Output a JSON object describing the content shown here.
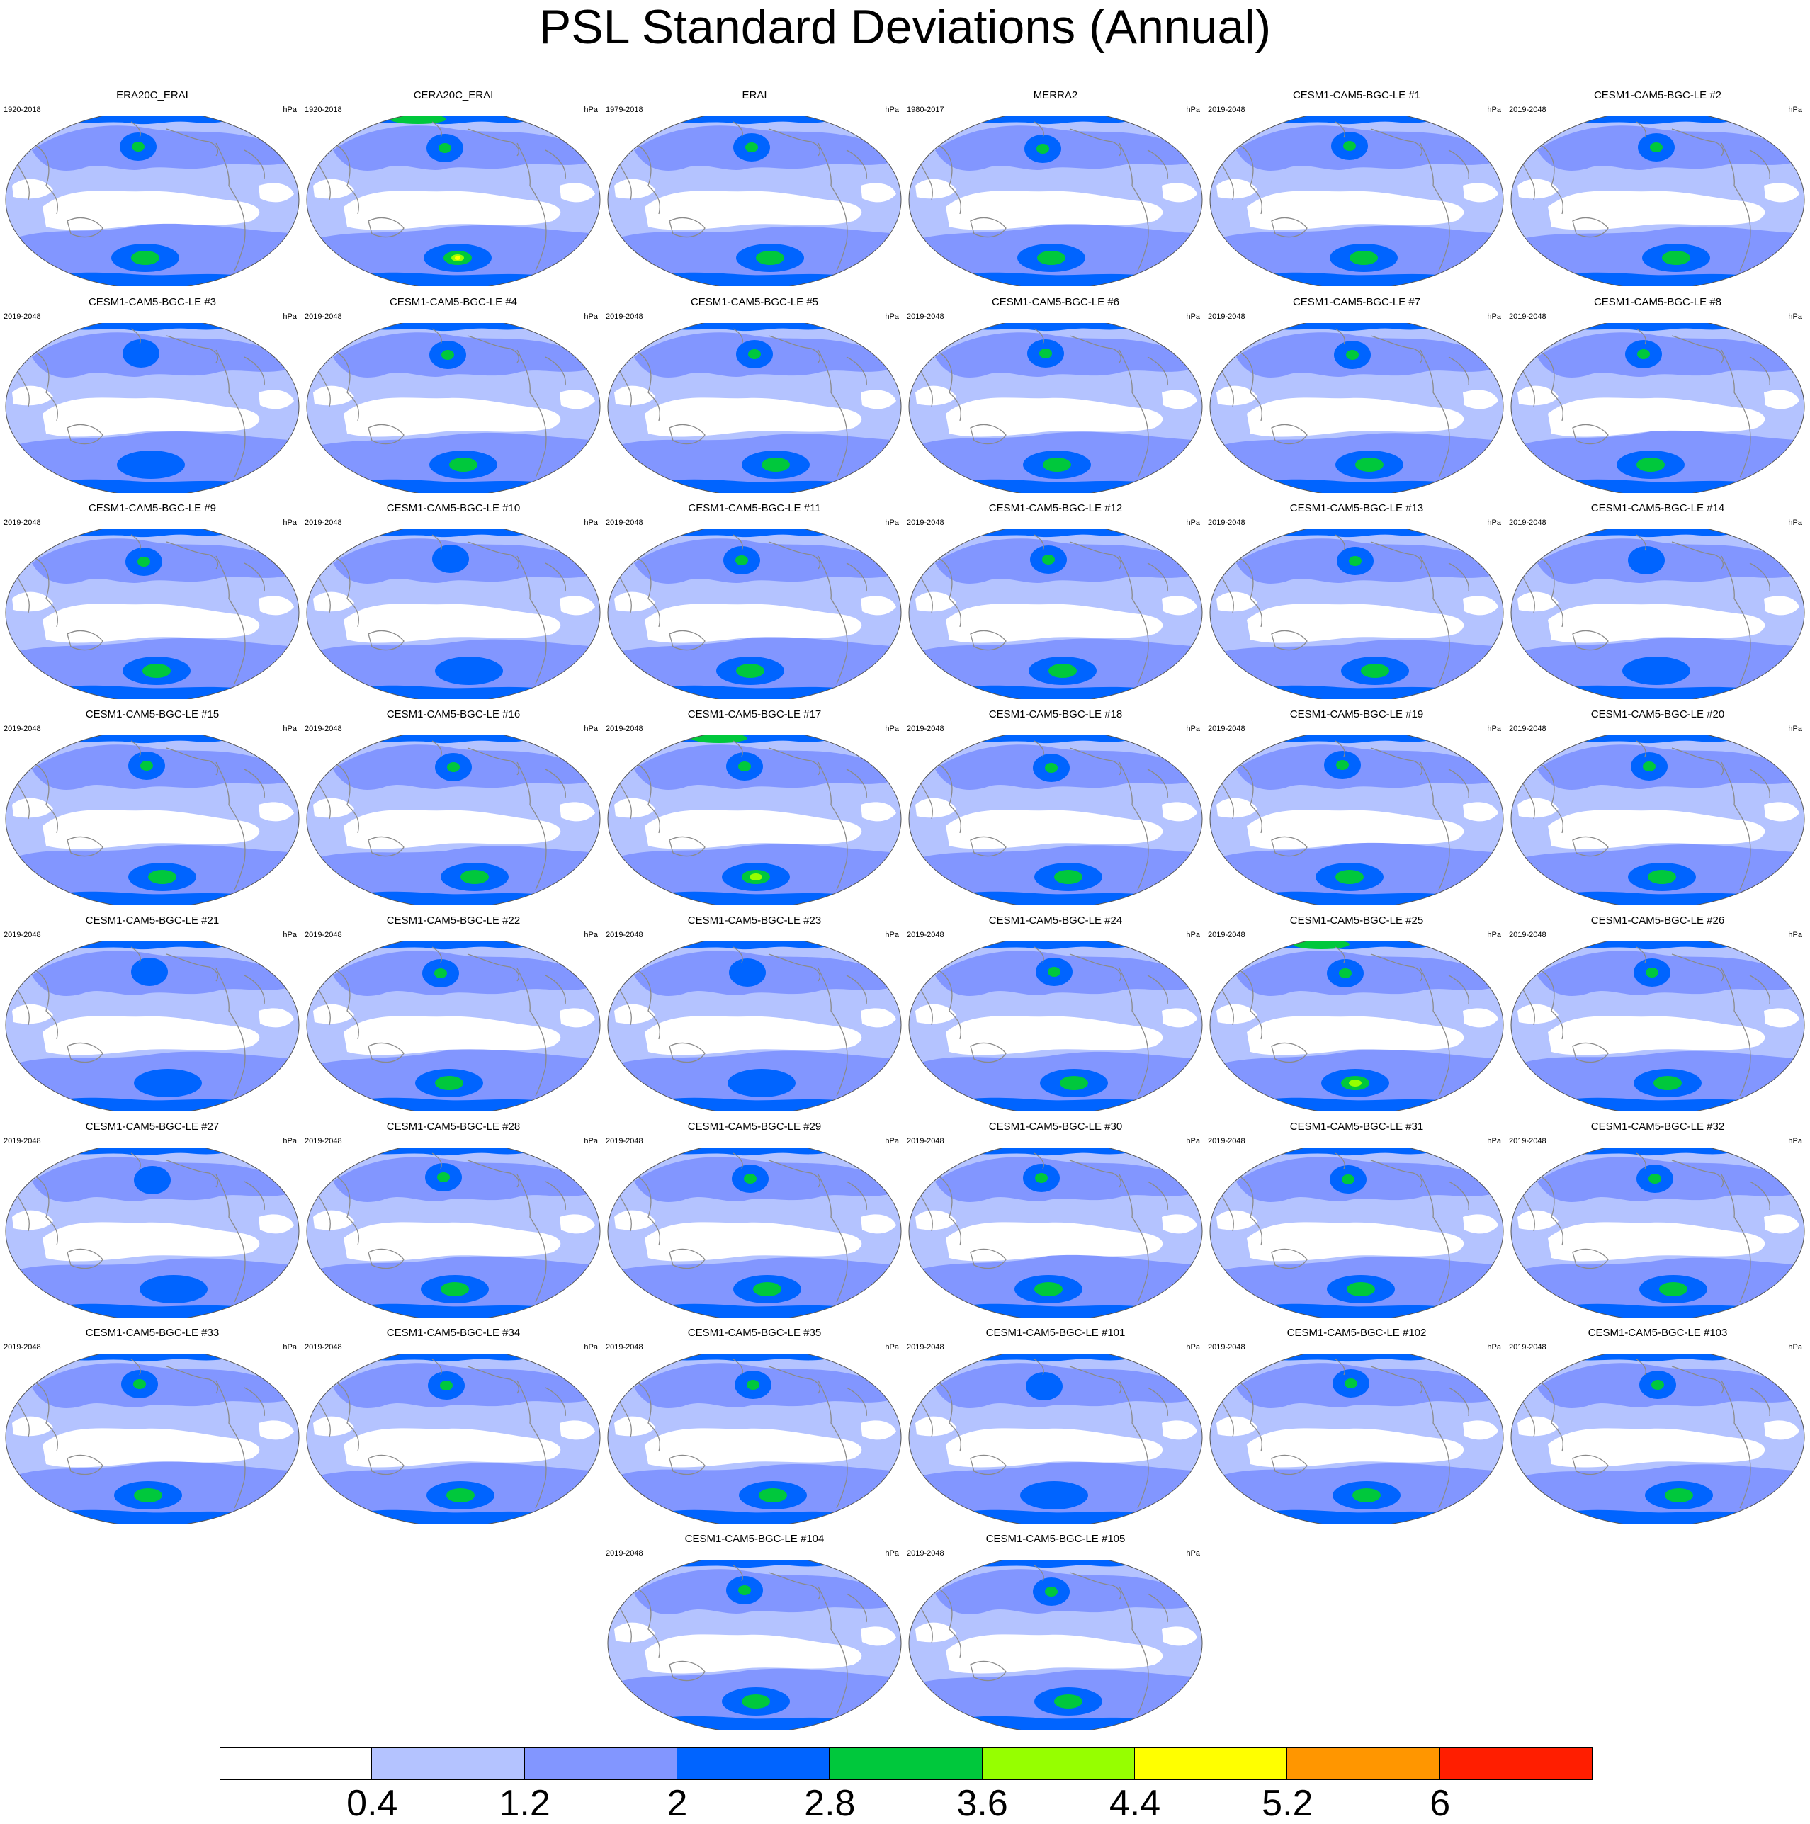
{
  "title": "PSL Standard Deviations (Annual)",
  "colors": {
    "c0": "#ffffff",
    "c1": "#b4c3ff",
    "c2": "#8296ff",
    "c3": "#0064ff",
    "c4": "#00c83c",
    "c5": "#96ff00",
    "c6": "#ffff00",
    "c7": "#ff9600",
    "c8": "#ff1e00",
    "coast": "#8a8a8a"
  },
  "chart_data": {
    "type": "contour-map-panels",
    "variable": "PSL",
    "statistic": "Standard Deviations",
    "season": "Annual",
    "units": "hPa",
    "colorbar": {
      "levels": [
        0.4,
        1.2,
        2,
        2.8,
        3.6,
        4.4,
        5.2,
        6
      ],
      "labels": [
        "0.4",
        "1.2",
        "2",
        "2.8",
        "3.6",
        "4.4",
        "5.2",
        "6"
      ],
      "colors": [
        "#ffffff",
        "#b4c3ff",
        "#8296ff",
        "#0064ff",
        "#00c83c",
        "#96ff00",
        "#ffff00",
        "#ff9600",
        "#ff1e00"
      ]
    },
    "panels": [
      {
        "title": "ERA20C_ERAI",
        "period": "1920-2018",
        "units": "hPa",
        "max_class": 4
      },
      {
        "title": "CERA20C_ERAI",
        "period": "1920-2018",
        "units": "hPa",
        "max_class": 6
      },
      {
        "title": "ERAI",
        "period": "1979-2018",
        "units": "hPa",
        "max_class": 4
      },
      {
        "title": "MERRA2",
        "period": "1980-2017",
        "units": "hPa",
        "max_class": 4
      },
      {
        "title": "CESM1-CAM5-BGC-LE #1",
        "period": "2019-2048",
        "units": "hPa",
        "max_class": 4
      },
      {
        "title": "CESM1-CAM5-BGC-LE #2",
        "period": "2019-2048",
        "units": "hPa",
        "max_class": 4
      },
      {
        "title": "CESM1-CAM5-BGC-LE #3",
        "period": "2019-2048",
        "units": "hPa",
        "max_class": 3
      },
      {
        "title": "CESM1-CAM5-BGC-LE #4",
        "period": "2019-2048",
        "units": "hPa",
        "max_class": 4
      },
      {
        "title": "CESM1-CAM5-BGC-LE #5",
        "period": "2019-2048",
        "units": "hPa",
        "max_class": 4
      },
      {
        "title": "CESM1-CAM5-BGC-LE #6",
        "period": "2019-2048",
        "units": "hPa",
        "max_class": 4
      },
      {
        "title": "CESM1-CAM5-BGC-LE #7",
        "period": "2019-2048",
        "units": "hPa",
        "max_class": 4
      },
      {
        "title": "CESM1-CAM5-BGC-LE #8",
        "period": "2019-2048",
        "units": "hPa",
        "max_class": 4
      },
      {
        "title": "CESM1-CAM5-BGC-LE #9",
        "period": "2019-2048",
        "units": "hPa",
        "max_class": 4
      },
      {
        "title": "CESM1-CAM5-BGC-LE #10",
        "period": "2019-2048",
        "units": "hPa",
        "max_class": 3
      },
      {
        "title": "CESM1-CAM5-BGC-LE #11",
        "period": "2019-2048",
        "units": "hPa",
        "max_class": 4
      },
      {
        "title": "CESM1-CAM5-BGC-LE #12",
        "period": "2019-2048",
        "units": "hPa",
        "max_class": 4
      },
      {
        "title": "CESM1-CAM5-BGC-LE #13",
        "period": "2019-2048",
        "units": "hPa",
        "max_class": 4
      },
      {
        "title": "CESM1-CAM5-BGC-LE #14",
        "period": "2019-2048",
        "units": "hPa",
        "max_class": 3
      },
      {
        "title": "CESM1-CAM5-BGC-LE #15",
        "period": "2019-2048",
        "units": "hPa",
        "max_class": 4
      },
      {
        "title": "CESM1-CAM5-BGC-LE #16",
        "period": "2019-2048",
        "units": "hPa",
        "max_class": 4
      },
      {
        "title": "CESM1-CAM5-BGC-LE #17",
        "period": "2019-2048",
        "units": "hPa",
        "max_class": 5
      },
      {
        "title": "CESM1-CAM5-BGC-LE #18",
        "period": "2019-2048",
        "units": "hPa",
        "max_class": 4
      },
      {
        "title": "CESM1-CAM5-BGC-LE #19",
        "period": "2019-2048",
        "units": "hPa",
        "max_class": 4
      },
      {
        "title": "CESM1-CAM5-BGC-LE #20",
        "period": "2019-2048",
        "units": "hPa",
        "max_class": 4
      },
      {
        "title": "CESM1-CAM5-BGC-LE #21",
        "period": "2019-2048",
        "units": "hPa",
        "max_class": 3
      },
      {
        "title": "CESM1-CAM5-BGC-LE #22",
        "period": "2019-2048",
        "units": "hPa",
        "max_class": 4
      },
      {
        "title": "CESM1-CAM5-BGC-LE #23",
        "period": "2019-2048",
        "units": "hPa",
        "max_class": 3
      },
      {
        "title": "CESM1-CAM5-BGC-LE #24",
        "period": "2019-2048",
        "units": "hPa",
        "max_class": 4
      },
      {
        "title": "CESM1-CAM5-BGC-LE #25",
        "period": "2019-2048",
        "units": "hPa",
        "max_class": 5
      },
      {
        "title": "CESM1-CAM5-BGC-LE #26",
        "period": "2019-2048",
        "units": "hPa",
        "max_class": 4
      },
      {
        "title": "CESM1-CAM5-BGC-LE #27",
        "period": "2019-2048",
        "units": "hPa",
        "max_class": 3
      },
      {
        "title": "CESM1-CAM5-BGC-LE #28",
        "period": "2019-2048",
        "units": "hPa",
        "max_class": 4
      },
      {
        "title": "CESM1-CAM5-BGC-LE #29",
        "period": "2019-2048",
        "units": "hPa",
        "max_class": 4
      },
      {
        "title": "CESM1-CAM5-BGC-LE #30",
        "period": "2019-2048",
        "units": "hPa",
        "max_class": 4
      },
      {
        "title": "CESM1-CAM5-BGC-LE #31",
        "period": "2019-2048",
        "units": "hPa",
        "max_class": 4
      },
      {
        "title": "CESM1-CAM5-BGC-LE #32",
        "period": "2019-2048",
        "units": "hPa",
        "max_class": 4
      },
      {
        "title": "CESM1-CAM5-BGC-LE #33",
        "period": "2019-2048",
        "units": "hPa",
        "max_class": 4
      },
      {
        "title": "CESM1-CAM5-BGC-LE #34",
        "period": "2019-2048",
        "units": "hPa",
        "max_class": 4
      },
      {
        "title": "CESM1-CAM5-BGC-LE #35",
        "period": "2019-2048",
        "units": "hPa",
        "max_class": 4
      },
      {
        "title": "CESM1-CAM5-BGC-LE #101",
        "period": "2019-2048",
        "units": "hPa",
        "max_class": 3
      },
      {
        "title": "CESM1-CAM5-BGC-LE #102",
        "period": "2019-2048",
        "units": "hPa",
        "max_class": 4
      },
      {
        "title": "CESM1-CAM5-BGC-LE #103",
        "period": "2019-2048",
        "units": "hPa",
        "max_class": 4
      },
      {
        "title": "CESM1-CAM5-BGC-LE #104",
        "period": "2019-2048",
        "units": "hPa",
        "max_class": 4
      },
      {
        "title": "CESM1-CAM5-BGC-LE #105",
        "period": "2019-2048",
        "units": "hPa",
        "max_class": 4
      }
    ]
  }
}
